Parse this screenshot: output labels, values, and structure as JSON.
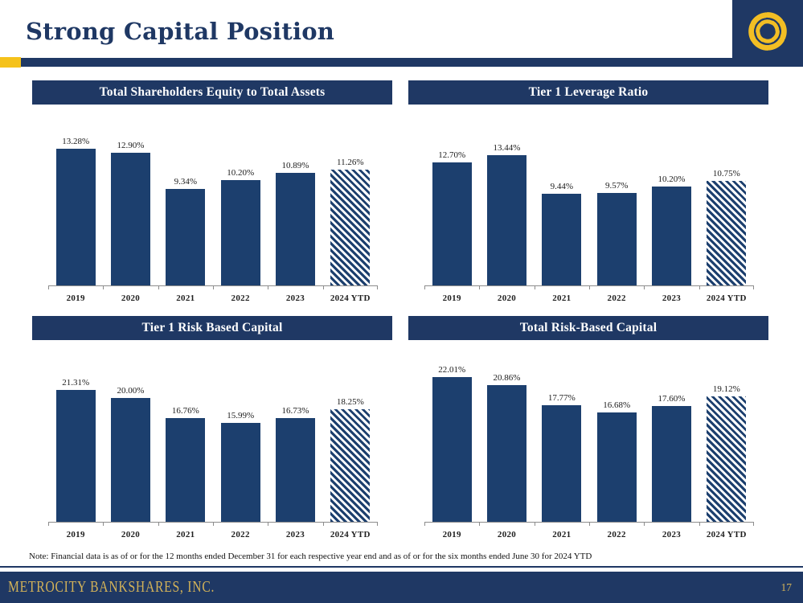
{
  "page": {
    "title": "Strong Capital Position",
    "note": "Note: Financial data is as of or for the 12 months ended December 31 for each respective year end and as of or for the six months ended June 30 for 2024 YTD",
    "footer": {
      "company": "METROCITY BANKSHARES, INC.",
      "page_number": "17"
    },
    "logo": "metrocity-swirl-logo"
  },
  "colors": {
    "navy": "#1F3864",
    "bar_navy": "#1C3F6E",
    "gold": "#F5C21B",
    "logo_gold": "#F2BE24",
    "footer_gold": "#D3B258"
  },
  "chart_data": [
    {
      "type": "bar",
      "title": "Total Shareholders Equity to Total Assets",
      "categories": [
        "2019",
        "2020",
        "2021",
        "2022",
        "2023",
        "2024 YTD"
      ],
      "values": [
        13.28,
        12.9,
        9.34,
        10.2,
        10.89,
        11.26
      ],
      "labels": [
        "13.28%",
        "12.90%",
        "9.34%",
        "10.20%",
        "10.89%",
        "11.26%"
      ],
      "ylim": [
        0,
        16
      ],
      "hatched_last": true,
      "grid": false,
      "legend": "none"
    },
    {
      "type": "bar",
      "title": "Tier 1 Leverage Ratio",
      "categories": [
        "2019",
        "2020",
        "2021",
        "2022",
        "2023",
        "2024 YTD"
      ],
      "values": [
        12.7,
        13.44,
        9.44,
        9.57,
        10.2,
        10.75
      ],
      "labels": [
        "12.70%",
        "13.44%",
        "9.44%",
        "9.57%",
        "10.20%",
        "10.75%"
      ],
      "ylim": [
        0,
        17
      ],
      "hatched_last": true,
      "grid": false,
      "legend": "none"
    },
    {
      "type": "bar",
      "title": "Tier 1 Risk Based Capital",
      "categories": [
        "2019",
        "2020",
        "2021",
        "2022",
        "2023",
        "2024 YTD"
      ],
      "values": [
        21.31,
        20.0,
        16.76,
        15.99,
        16.73,
        18.25
      ],
      "labels": [
        "21.31%",
        "20.00%",
        "16.76%",
        "15.99%",
        "16.73%",
        "18.25%"
      ],
      "ylim": [
        0,
        26
      ],
      "hatched_last": true,
      "grid": false,
      "legend": "none"
    },
    {
      "type": "bar",
      "title": "Total Risk-Based Capital",
      "categories": [
        "2019",
        "2020",
        "2021",
        "2022",
        "2023",
        "2024 YTD"
      ],
      "values": [
        22.01,
        20.86,
        17.77,
        16.68,
        17.6,
        19.12
      ],
      "labels": [
        "22.01%",
        "20.86%",
        "17.77%",
        "16.68%",
        "17.60%",
        "19.12%"
      ],
      "ylim": [
        0,
        24.5
      ],
      "hatched_last": true,
      "grid": false,
      "legend": "none"
    }
  ]
}
